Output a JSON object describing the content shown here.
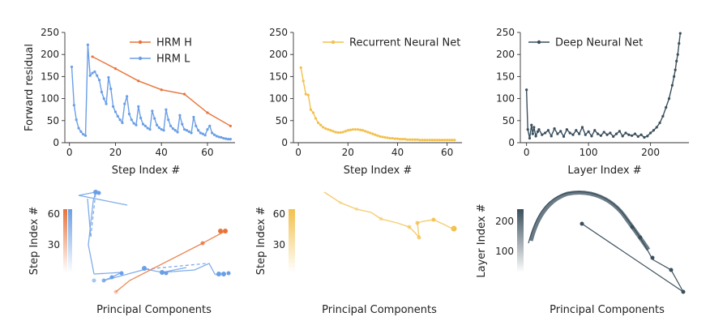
{
  "colors": {
    "hrm_h": "#e8733a",
    "hrm_l": "#6a9fe6",
    "rnn": "#f2c14e",
    "dnn": "#3a4f5c"
  },
  "chart_data": [
    {
      "type": "line",
      "xlabel": "Step Index #",
      "ylabel": "Forward residual",
      "xlim": [
        -2,
        72
      ],
      "ylim": [
        0,
        250
      ],
      "xticks": [
        "0",
        "20",
        "40",
        "60"
      ],
      "yticks": [
        "0",
        "50",
        "100",
        "150",
        "200",
        "250"
      ],
      "legend_position": "top-right",
      "series": [
        {
          "name": "HRM H",
          "color": "#e8733a",
          "x": [
            10,
            20,
            30,
            40,
            50,
            60,
            70
          ],
          "y": [
            195,
            168,
            140,
            120,
            110,
            68,
            38
          ]
        },
        {
          "name": "HRM L",
          "color": "#6a9fe6",
          "x": [
            1,
            2,
            3,
            4,
            5,
            6,
            7,
            8,
            9,
            10,
            11,
            12,
            13,
            14,
            15,
            16,
            17,
            18,
            19,
            20,
            21,
            22,
            23,
            24,
            25,
            26,
            27,
            28,
            29,
            30,
            31,
            32,
            33,
            34,
            35,
            36,
            37,
            38,
            39,
            40,
            41,
            42,
            43,
            44,
            45,
            46,
            47,
            48,
            49,
            50,
            51,
            52,
            53,
            54,
            55,
            56,
            57,
            58,
            59,
            60,
            61,
            62,
            63,
            64,
            65,
            66,
            67,
            68,
            69,
            70
          ],
          "y": [
            172,
            85,
            52,
            33,
            25,
            19,
            16,
            222,
            152,
            158,
            161,
            152,
            142,
            115,
            100,
            88,
            148,
            122,
            82,
            70,
            60,
            52,
            45,
            88,
            105,
            65,
            52,
            44,
            40,
            82,
            56,
            42,
            38,
            33,
            30,
            72,
            55,
            40,
            34,
            30,
            28,
            75,
            52,
            38,
            32,
            28,
            24,
            62,
            42,
            30,
            28,
            25,
            22,
            58,
            38,
            28,
            22,
            20,
            17,
            30,
            38,
            22,
            18,
            15,
            13,
            12,
            10,
            9,
            8,
            8
          ]
        }
      ]
    },
    {
      "type": "line",
      "xlabel": "Step Index #",
      "ylabel": "",
      "xlim": [
        -2,
        66
      ],
      "ylim": [
        0,
        250
      ],
      "xticks": [
        "0",
        "20",
        "40",
        "60"
      ],
      "yticks": [
        "0",
        "50",
        "100",
        "150",
        "200",
        "250"
      ],
      "legend_position": "top-right",
      "series": [
        {
          "name": "Recurrent Neural Net",
          "color": "#f2c14e",
          "x": [
            1,
            2,
            3,
            4,
            5,
            6,
            7,
            8,
            9,
            10,
            11,
            12,
            13,
            14,
            15,
            16,
            17,
            18,
            19,
            20,
            21,
            22,
            23,
            24,
            25,
            26,
            27,
            28,
            29,
            30,
            31,
            32,
            33,
            34,
            35,
            36,
            37,
            38,
            39,
            40,
            41,
            42,
            43,
            44,
            45,
            46,
            47,
            48,
            49,
            50,
            51,
            52,
            53,
            54,
            55,
            56,
            57,
            58,
            59,
            60,
            61,
            62,
            63
          ],
          "y": [
            170,
            140,
            110,
            108,
            75,
            68,
            55,
            45,
            40,
            35,
            32,
            30,
            28,
            26,
            24,
            23,
            23,
            24,
            26,
            28,
            29,
            30,
            30,
            30,
            29,
            28,
            26,
            24,
            22,
            20,
            18,
            16,
            14,
            13,
            12,
            11,
            10,
            10,
            9,
            9,
            8,
            8,
            8,
            7,
            7,
            7,
            7,
            7,
            6,
            6,
            6,
            6,
            6,
            6,
            6,
            6,
            6,
            6,
            6,
            6,
            6,
            6,
            6
          ]
        }
      ]
    },
    {
      "type": "line",
      "xlabel": "Layer Index #",
      "ylabel": "",
      "xlim": [
        -10,
        262
      ],
      "ylim": [
        0,
        250
      ],
      "xticks": [
        "0",
        "100",
        "200"
      ],
      "yticks": [
        "0",
        "50",
        "100",
        "150",
        "200",
        "250"
      ],
      "legend_position": "top-left",
      "series": [
        {
          "name": "Deep Neural Net",
          "color": "#3a4f5c",
          "x": [
            0,
            2,
            5,
            8,
            10,
            12,
            15,
            18,
            20,
            25,
            30,
            35,
            40,
            45,
            50,
            55,
            60,
            65,
            70,
            75,
            80,
            85,
            90,
            95,
            100,
            105,
            110,
            115,
            120,
            125,
            130,
            135,
            140,
            145,
            150,
            155,
            160,
            165,
            170,
            175,
            180,
            185,
            190,
            195,
            200,
            205,
            210,
            215,
            220,
            225,
            230,
            235,
            238,
            240,
            242,
            244,
            246,
            248
          ],
          "y": [
            120,
            30,
            10,
            40,
            20,
            35,
            15,
            25,
            30,
            18,
            22,
            28,
            15,
            32,
            20,
            26,
            14,
            30,
            22,
            18,
            28,
            20,
            35,
            18,
            25,
            15,
            28,
            20,
            16,
            24,
            18,
            22,
            14,
            20,
            26,
            15,
            22,
            18,
            16,
            20,
            14,
            18,
            12,
            15,
            22,
            28,
            35,
            45,
            60,
            80,
            100,
            130,
            150,
            165,
            185,
            200,
            225,
            248
          ]
        }
      ]
    },
    {
      "type": "scatter",
      "xlabel": "Principal Components",
      "ylabel": "Step Index #",
      "colorbar_ticks": [
        "30",
        "60"
      ]
    },
    {
      "type": "scatter",
      "xlabel": "Principal Components",
      "ylabel": "Step Index #",
      "colorbar_ticks": [
        "30",
        "60"
      ]
    },
    {
      "type": "scatter",
      "xlabel": "Principal Components",
      "ylabel": "Layer Index #",
      "colorbar_ticks": [
        "100",
        "200"
      ]
    }
  ]
}
